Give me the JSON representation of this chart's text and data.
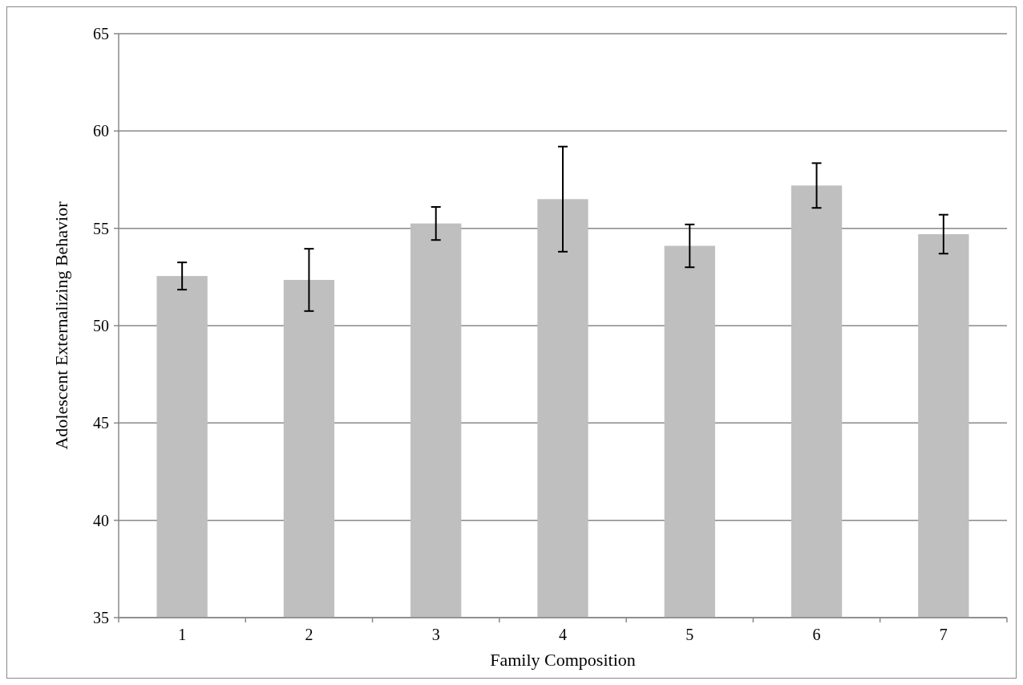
{
  "chart_data": {
    "type": "bar",
    "xlabel": "Family Composition",
    "ylabel": "Adolescent Externalizing Behavior",
    "categories": [
      "1",
      "2",
      "3",
      "4",
      "5",
      "6",
      "7"
    ],
    "values": [
      52.55,
      52.35,
      55.25,
      56.5,
      54.1,
      57.2,
      54.7
    ],
    "errors": [
      0.7,
      1.6,
      0.85,
      2.7,
      1.1,
      1.15,
      1.0
    ],
    "color": "#bfbfbf",
    "ylim": [
      35,
      65
    ],
    "yticks": [
      35,
      40,
      45,
      50,
      55,
      60,
      65
    ],
    "grid": "y"
  }
}
